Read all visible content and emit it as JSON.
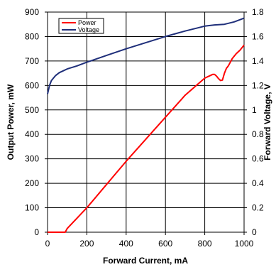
{
  "chart_data": {
    "type": "line",
    "xlabel": "Forward Current, mA",
    "ylabel_left": "Output Power, mW",
    "ylabel_right": "Forward Voltage, V",
    "xlim": [
      0,
      1000
    ],
    "ylim_left": [
      0,
      900
    ],
    "ylim_right": [
      0,
      1.8
    ],
    "x_ticks": [
      "0",
      "200",
      "400",
      "600",
      "800",
      "1000"
    ],
    "y_left_ticks": [
      "0",
      "100",
      "200",
      "300",
      "400",
      "500",
      "600",
      "700",
      "800",
      "900"
    ],
    "y_right_ticks": [
      "0",
      "0.2",
      "0.4",
      "0.6",
      "0.8",
      "1",
      "1.2",
      "1.4",
      "1.6",
      "1.8"
    ],
    "grid": true,
    "legend_position": "top-left",
    "series": [
      {
        "name": "Power",
        "axis": "left",
        "color": "#ff0000",
        "x": [
          0,
          90,
          100,
          200,
          300,
          400,
          500,
          600,
          700,
          800,
          840,
          850,
          860,
          870,
          880,
          890,
          900,
          910,
          920,
          940,
          960,
          980,
          1000
        ],
        "y": [
          0,
          0,
          15,
          100,
          195,
          290,
          380,
          470,
          560,
          630,
          645,
          645,
          638,
          628,
          620,
          622,
          650,
          670,
          680,
          710,
          730,
          745,
          765
        ]
      },
      {
        "name": "Voltage",
        "axis": "right",
        "color": "#1f2f7a",
        "x": [
          0,
          10,
          20,
          40,
          60,
          80,
          100,
          150,
          200,
          300,
          400,
          500,
          600,
          700,
          800,
          850,
          900,
          950,
          1000
        ],
        "y": [
          1.13,
          1.2,
          1.24,
          1.28,
          1.305,
          1.32,
          1.335,
          1.36,
          1.39,
          1.445,
          1.5,
          1.55,
          1.6,
          1.645,
          1.685,
          1.695,
          1.7,
          1.72,
          1.75
        ]
      }
    ]
  }
}
